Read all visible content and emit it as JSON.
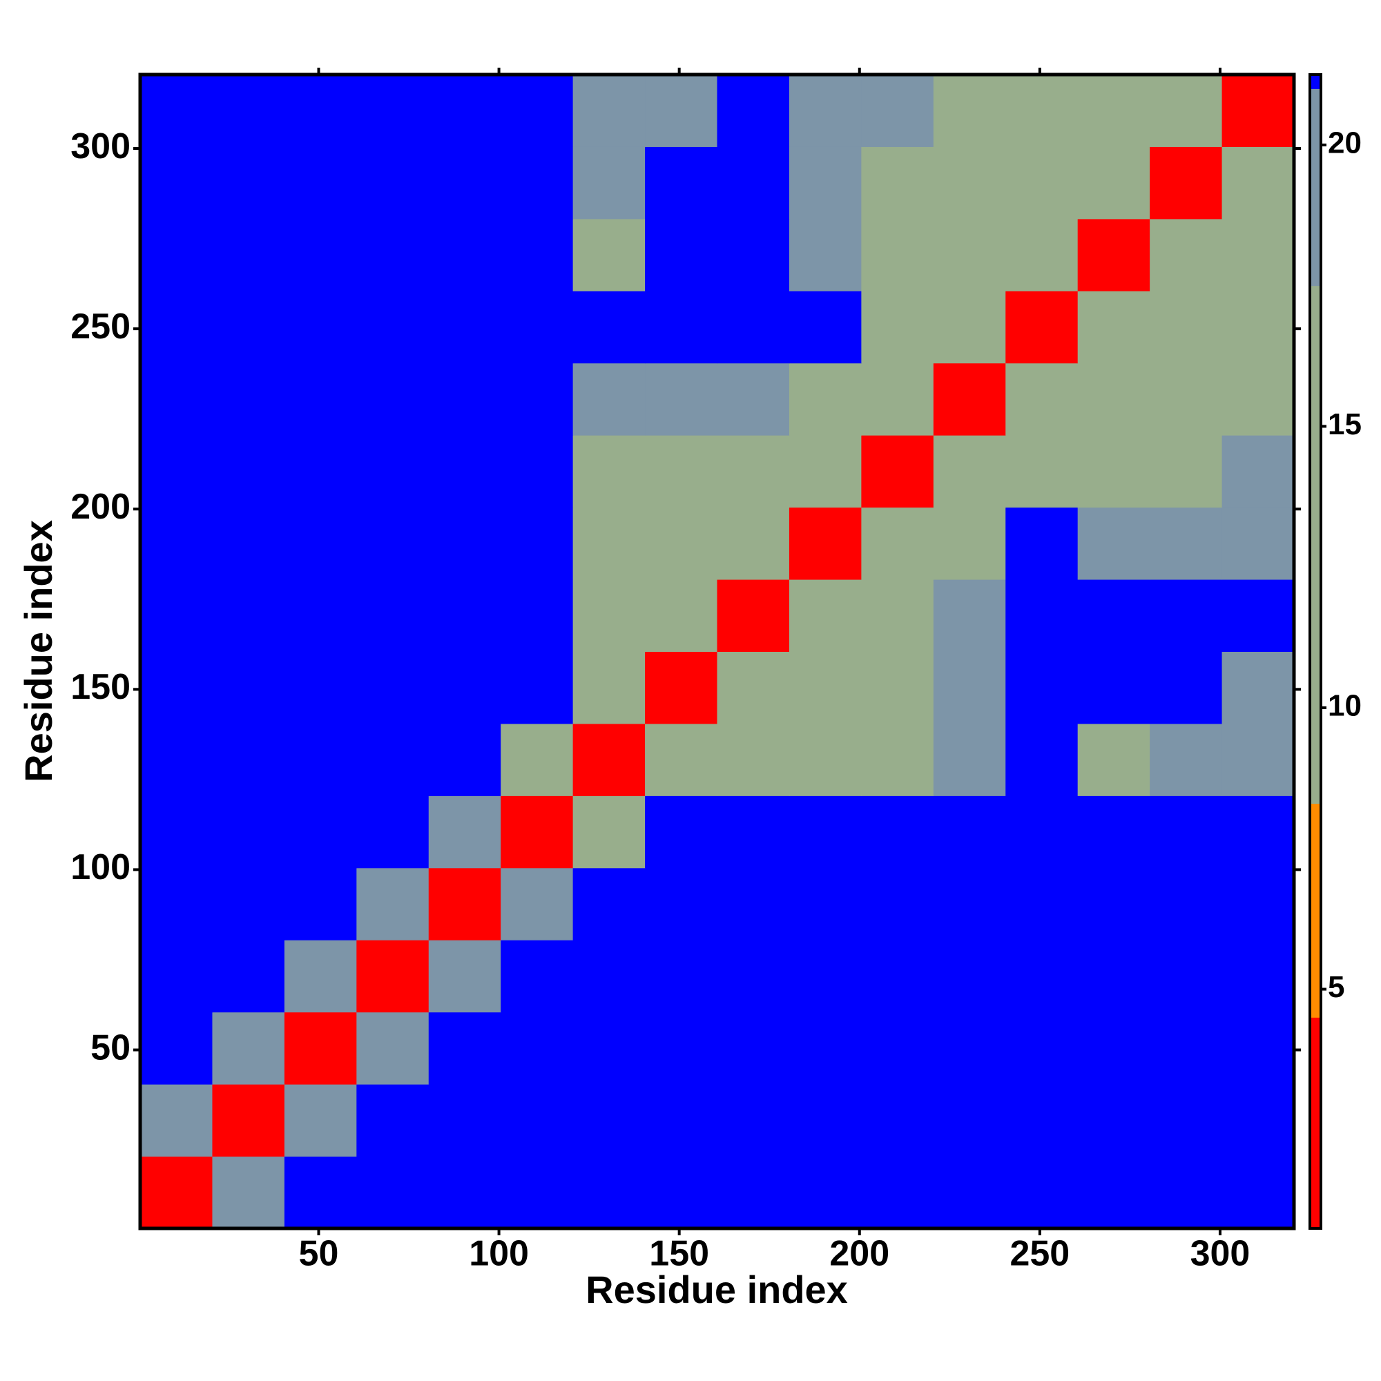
{
  "chart_data": {
    "type": "heatmap",
    "x_label": "Residue index",
    "y_label": "Residue index",
    "xlim": [
      0.5,
      320.5
    ],
    "ylim": [
      0.5,
      320.5
    ],
    "xticks": [
      50,
      100,
      150,
      200,
      250,
      300
    ],
    "yticks": [
      50,
      100,
      150,
      200,
      250,
      300
    ],
    "x_bins": [
      0.5,
      20.5,
      40.5,
      60.5,
      80.5,
      100.5,
      120.5,
      140.5,
      160.5,
      180.5,
      200.5,
      220.5,
      240.5,
      260.5,
      280.5,
      300.5,
      320.5
    ],
    "y_bins": [
      0.5,
      20.5,
      40.5,
      60.5,
      80.5,
      100.5,
      120.5,
      140.5,
      160.5,
      180.5,
      200.5,
      220.5,
      240.5,
      260.5,
      280.5,
      300.5,
      320.5
    ],
    "z": [
      [
        3,
        18,
        21,
        21,
        21,
        21,
        21,
        21,
        21,
        21,
        21,
        21,
        21,
        21,
        21,
        21
      ],
      [
        18,
        3,
        18,
        21,
        21,
        21,
        21,
        21,
        21,
        21,
        21,
        21,
        21,
        21,
        21,
        21
      ],
      [
        21,
        18,
        3,
        18,
        21,
        21,
        21,
        21,
        21,
        21,
        21,
        21,
        21,
        21,
        21,
        21
      ],
      [
        21,
        21,
        18,
        3,
        18,
        21,
        21,
        21,
        21,
        21,
        21,
        21,
        21,
        21,
        21,
        21
      ],
      [
        21,
        21,
        21,
        18,
        3,
        18,
        21,
        21,
        21,
        21,
        21,
        21,
        21,
        21,
        21,
        21
      ],
      [
        21,
        21,
        21,
        21,
        18,
        3,
        15,
        21,
        21,
        21,
        21,
        21,
        21,
        21,
        21,
        21
      ],
      [
        21,
        21,
        21,
        21,
        21,
        15,
        3,
        13,
        16,
        12,
        17,
        19,
        21,
        16,
        19,
        20
      ],
      [
        21,
        21,
        21,
        21,
        21,
        21,
        13,
        3,
        12,
        13,
        17,
        18,
        21,
        21,
        21,
        20
      ],
      [
        21,
        21,
        21,
        21,
        21,
        21,
        16,
        12,
        3,
        12,
        16,
        20,
        21,
        21,
        21,
        21
      ],
      [
        21,
        21,
        21,
        21,
        21,
        21,
        12,
        13,
        12,
        3,
        11,
        15,
        21,
        18,
        20,
        20
      ],
      [
        21,
        21,
        21,
        21,
        21,
        21,
        17,
        17,
        16,
        11,
        3,
        12,
        14,
        15,
        17,
        19
      ],
      [
        21,
        21,
        21,
        21,
        21,
        21,
        19,
        18,
        20,
        15,
        12,
        3,
        12,
        14,
        15,
        16
      ],
      [
        21,
        21,
        21,
        21,
        21,
        21,
        21,
        21,
        21,
        21,
        14,
        12,
        3,
        12,
        14,
        15
      ],
      [
        21,
        21,
        21,
        21,
        21,
        21,
        16,
        21,
        21,
        18,
        15,
        14,
        12,
        3,
        12,
        13
      ],
      [
        21,
        21,
        21,
        21,
        21,
        21,
        19,
        21,
        21,
        20,
        17,
        15,
        14,
        12,
        3,
        12
      ],
      [
        21,
        21,
        21,
        21,
        21,
        21,
        20,
        20,
        21,
        20,
        19,
        16,
        15,
        13,
        12,
        3
      ]
    ],
    "clim": [
      0.75,
      21.25
    ],
    "cticks": [
      5,
      10,
      15,
      20
    ],
    "color_levels": [
      [
        0.75,
        "#ff0000"
      ],
      [
        4.5,
        "#ff8c00"
      ],
      [
        8.3,
        "#98ae8c"
      ],
      [
        17.5,
        "#7d95a8"
      ],
      [
        21,
        "#0000ff"
      ]
    ]
  }
}
